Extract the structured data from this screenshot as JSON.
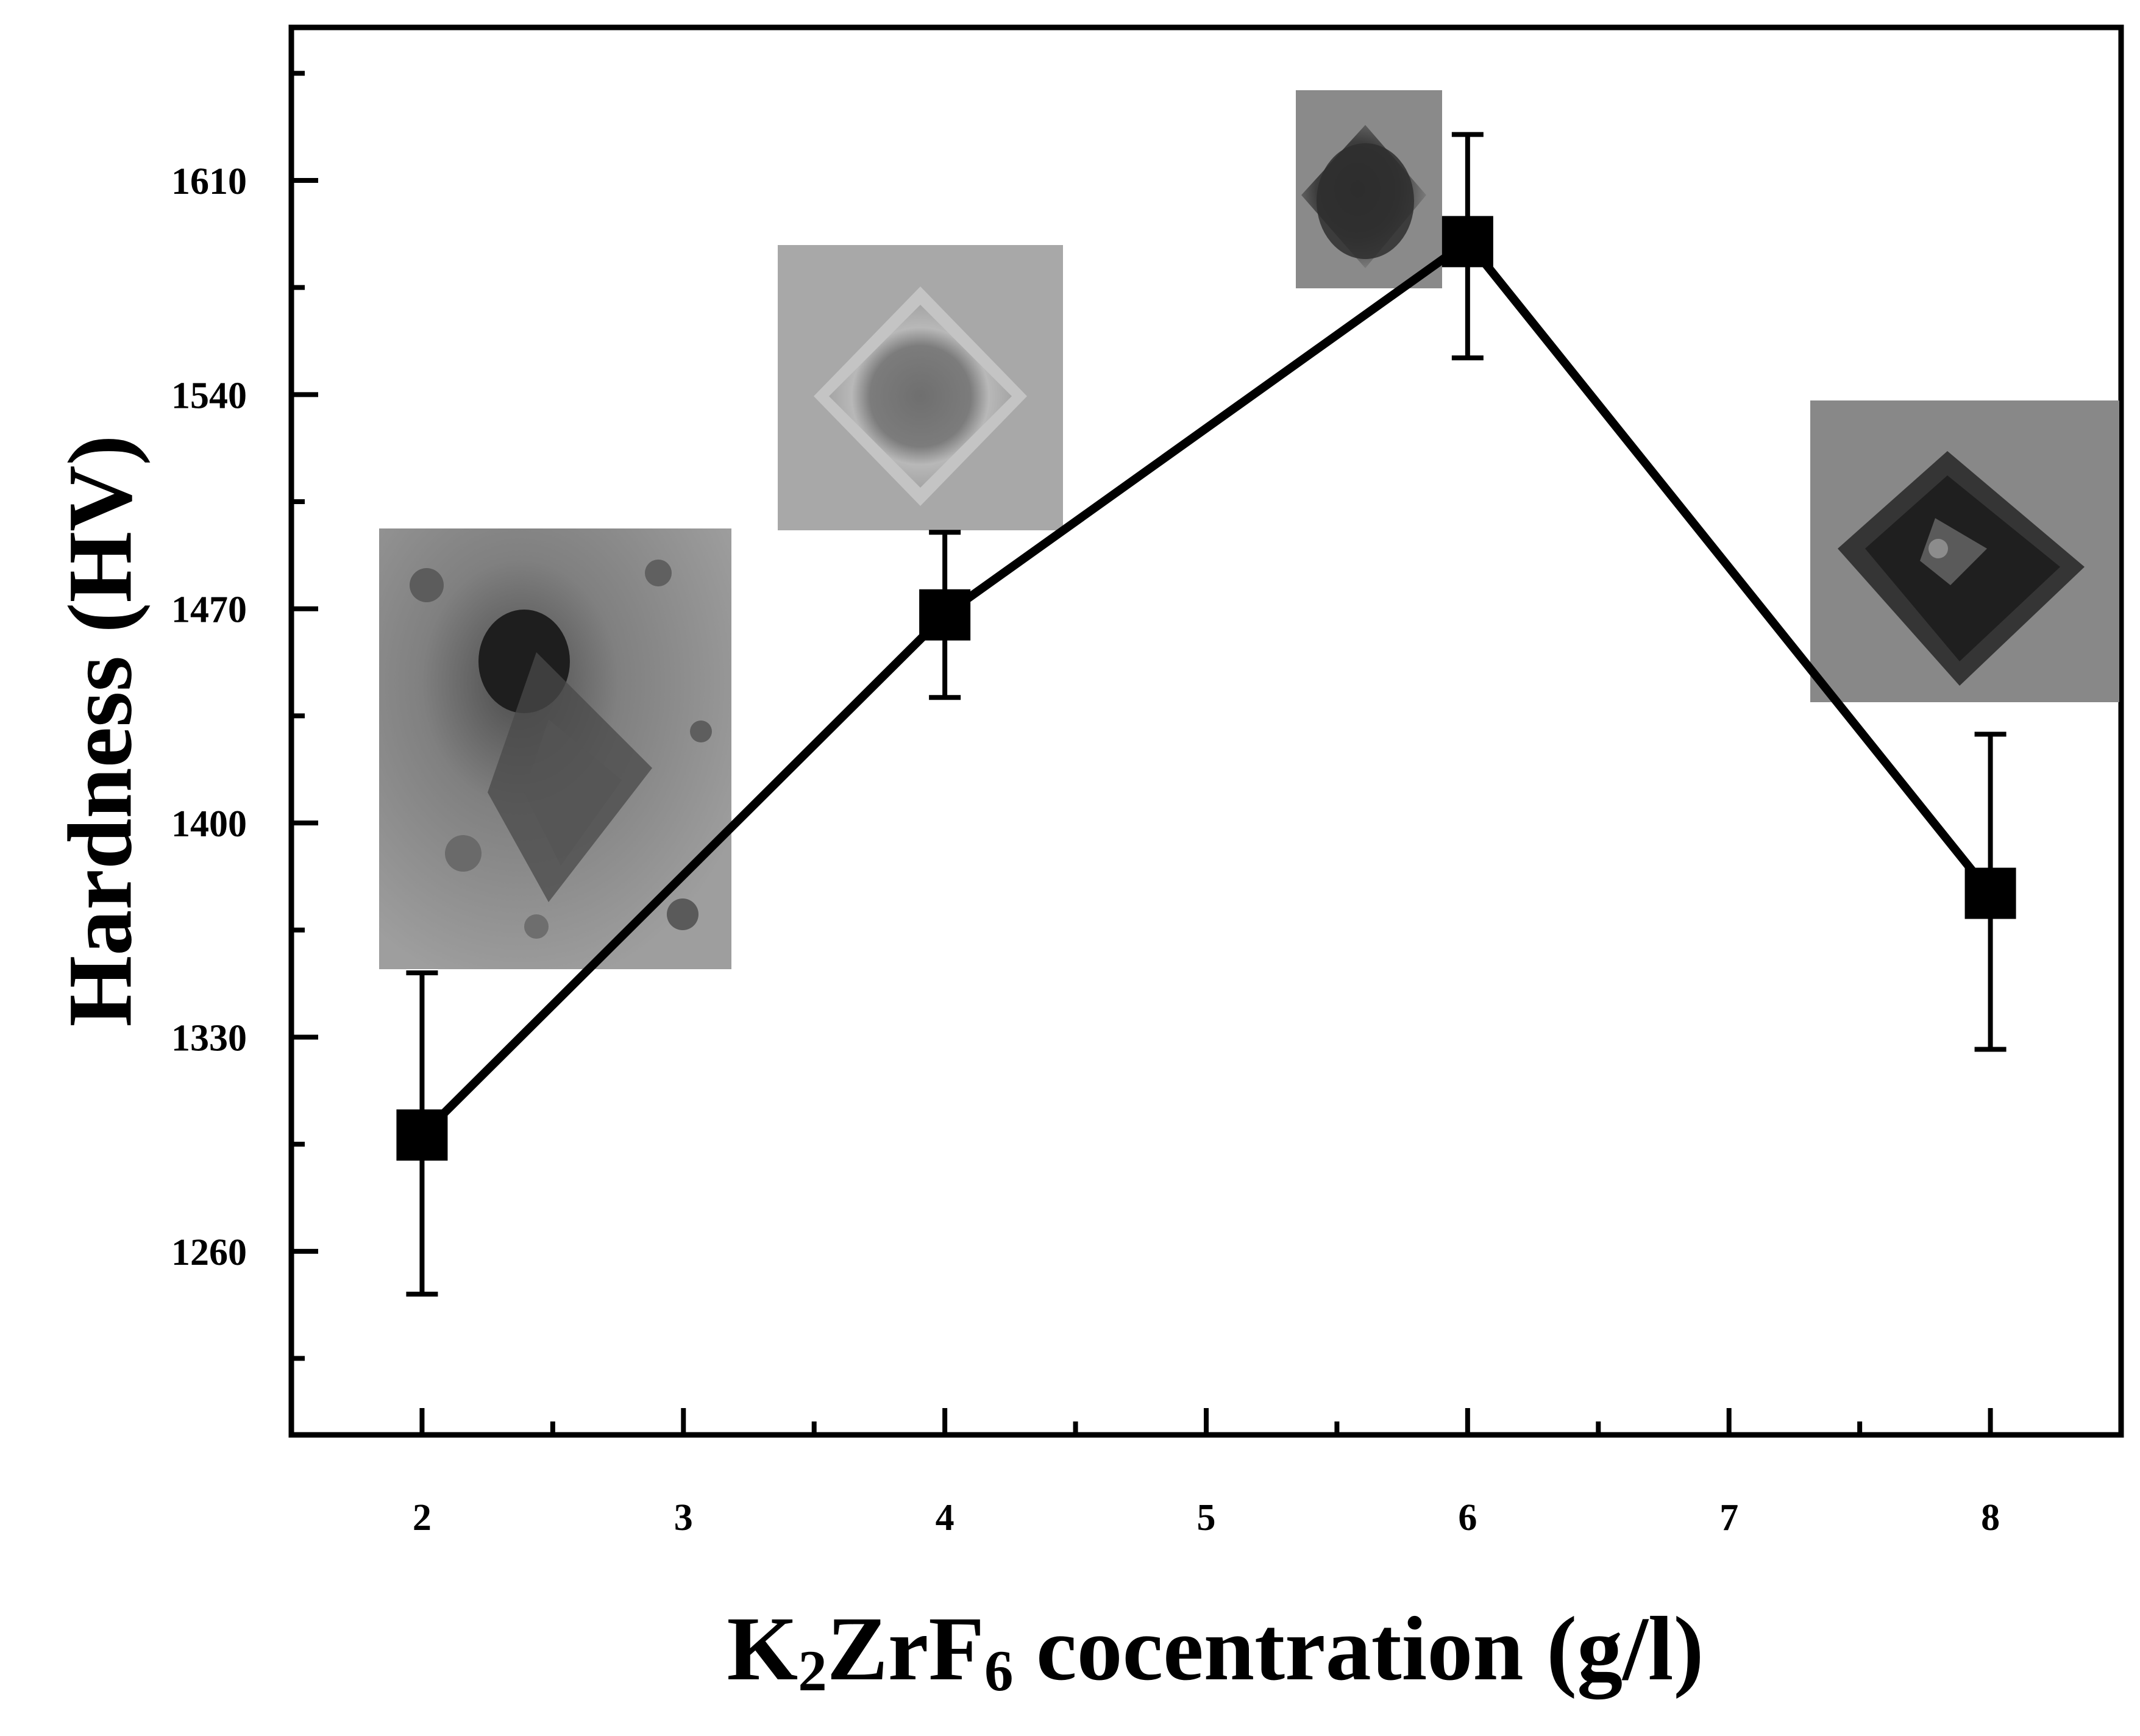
{
  "chart_data": {
    "type": "line",
    "title": "",
    "xlabel": {
      "parts": [
        "K",
        "2",
        "ZrF",
        "6",
        " cocentration (g/l)"
      ]
    },
    "ylabel": "Hardness (HV)",
    "xlim": [
      1.5,
      8.5
    ],
    "ylim": [
      1200,
      1660
    ],
    "x_ticks": [
      2,
      3,
      4,
      5,
      6,
      7,
      8
    ],
    "x_tick_labels": [
      "2",
      "3",
      "4",
      "5",
      "6",
      "7",
      "8"
    ],
    "x_minor_ticks": [
      2.5,
      3.5,
      4.5,
      5.5,
      6.5,
      7.5
    ],
    "y_ticks": [
      1260,
      1330,
      1400,
      1470,
      1540,
      1610
    ],
    "y_tick_labels": [
      "1260",
      "1330",
      "1400",
      "1470",
      "1540",
      "1610"
    ],
    "y_minor_ticks": [
      1225,
      1295,
      1365,
      1435,
      1505,
      1575,
      1645
    ],
    "grid": false,
    "series": [
      {
        "name": "Hardness",
        "marker": "square",
        "color": "#000000",
        "x": [
          2,
          4,
          6,
          8
        ],
        "y": [
          1298,
          1468,
          1590,
          1377
        ],
        "error": [
          [
            1246,
            1351
          ],
          [
            1441,
            1495
          ],
          [
            1552,
            1625
          ],
          [
            1326,
            1429
          ]
        ]
      }
    ],
    "insets": [
      {
        "name": "indentation-image-2",
        "x": 2,
        "description_tone": "speckled"
      },
      {
        "name": "indentation-image-4",
        "x": 4,
        "description_tone": "light"
      },
      {
        "name": "indentation-image-6",
        "x": 6,
        "description_tone": "dark"
      },
      {
        "name": "indentation-image-8",
        "x": 8,
        "description_tone": "medium"
      }
    ]
  }
}
